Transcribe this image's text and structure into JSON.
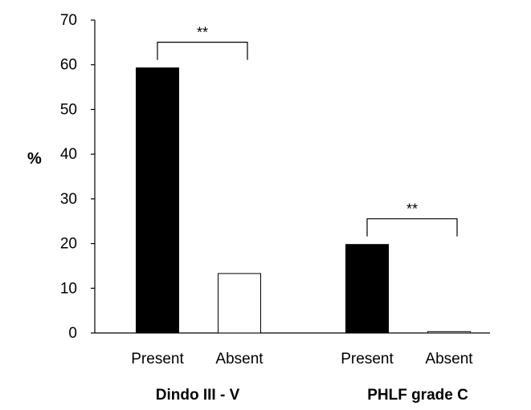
{
  "chart_data": {
    "type": "bar",
    "ylabel": "%",
    "ylim": [
      0,
      70
    ],
    "yticks": [
      0,
      10,
      20,
      30,
      40,
      50,
      60,
      70
    ],
    "grid": false,
    "groups": [
      {
        "label": "Dindo III - V",
        "bars": [
          {
            "category": "Present",
            "value": 59.3,
            "fill": "#000000"
          },
          {
            "category": "Absent",
            "value": 13.3,
            "fill": "#ffffff"
          }
        ],
        "significance": "**"
      },
      {
        "label": "PHLF grade C",
        "bars": [
          {
            "category": "Present",
            "value": 19.8,
            "fill": "#000000"
          },
          {
            "category": "Absent",
            "value": 0.3,
            "fill": "#ffffff"
          }
        ],
        "significance": "**"
      }
    ]
  }
}
